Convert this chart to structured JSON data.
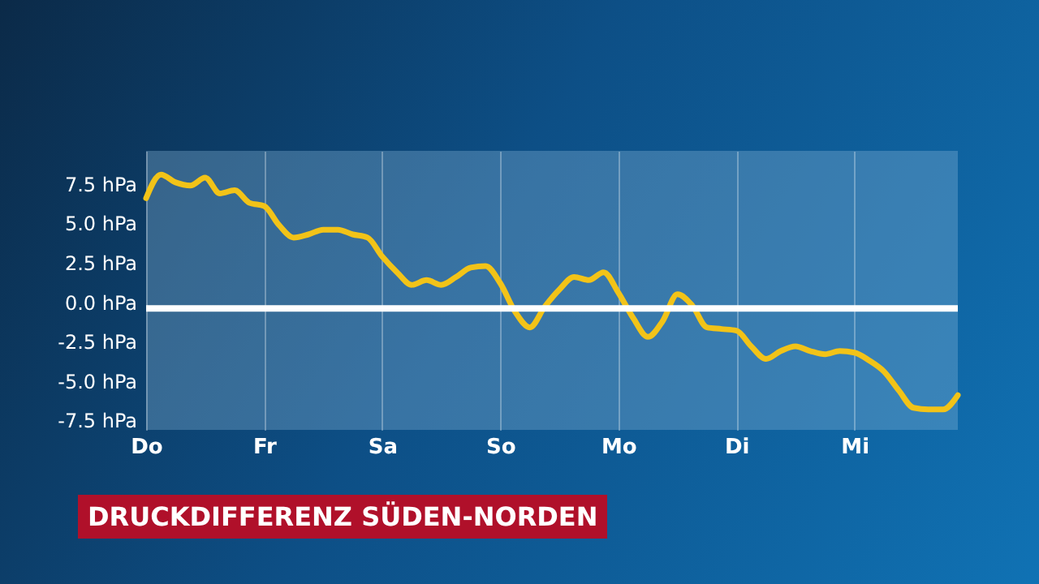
{
  "chart_data": {
    "type": "line",
    "title": "DRUCKDIFFERENZ SÜDEN-NORDEN",
    "categories": [
      "Do",
      null,
      null,
      null,
      null,
      null,
      null,
      null,
      "Fr",
      null,
      null,
      null,
      null,
      null,
      null,
      null,
      "Sa",
      null,
      null,
      null,
      null,
      null,
      null,
      null,
      "So",
      null,
      null,
      null,
      null,
      null,
      null,
      null,
      "Mo",
      null,
      null,
      null,
      null,
      null,
      null,
      null,
      "Di",
      null,
      null,
      null,
      null,
      null,
      null,
      null,
      "Mi",
      null,
      null,
      null,
      null,
      null,
      null,
      null
    ],
    "series": [
      {
        "color": "#f2c318",
        "values": [
          6.6,
          8.1,
          7.6,
          7.4,
          7.9,
          6.9,
          7.1,
          6.3,
          6.1,
          4.9,
          4.1,
          4.3,
          4.6,
          4.6,
          4.3,
          4.1,
          2.9,
          1.9,
          1.1,
          1.4,
          1.1,
          1.6,
          2.2,
          2.3,
          1.2,
          -0.6,
          -1.6,
          -0.3,
          0.8,
          1.6,
          1.4,
          1.9,
          0.6,
          -1.0,
          -2.2,
          -1.2,
          0.5,
          -0.2,
          -1.6,
          -1.7,
          -1.8,
          -2.8,
          -3.6,
          -3.1,
          -2.8,
          -3.1,
          -3.3,
          -3.1,
          -3.2,
          -3.7,
          -4.4,
          -5.6,
          -6.7,
          -6.8,
          -6.8,
          -5.9
        ]
      }
    ],
    "ylim": [
      -8.1,
      9.6
    ],
    "yticks": [
      {
        "value": -7.5,
        "label": "-7.5 hPa"
      },
      {
        "value": -5,
        "label": "-5.0 hPa"
      },
      {
        "value": -2.5,
        "label": "-2.5 hPa"
      },
      {
        "value": 0,
        "label": "0.0 hPa"
      },
      {
        "value": 2.5,
        "label": "2.5 hPa"
      },
      {
        "value": 5,
        "label": "5.0 hPa"
      },
      {
        "value": 7.5,
        "label": "7.5 hPa"
      }
    ],
    "ref_lines": [
      {
        "axis": "y",
        "value": -0.4,
        "color": "#ffffff"
      }
    ],
    "grid": "x",
    "legend": false,
    "marker": "none",
    "line_style": "solid"
  }
}
